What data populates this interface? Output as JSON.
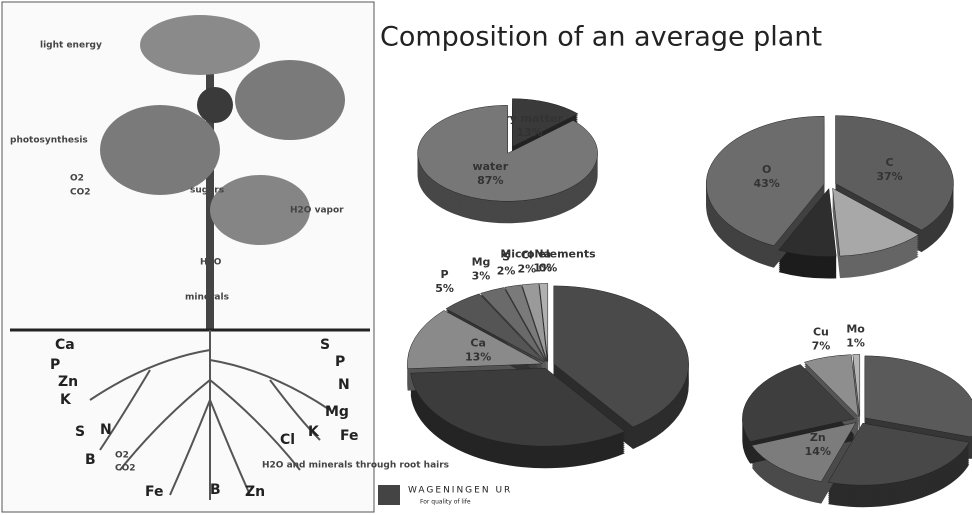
{
  "title": "Composition of an average plant",
  "diagram": {
    "labels": [
      "light energy",
      "photosynthesis",
      "O2",
      "CO2",
      "sugars",
      "H2O vapor",
      "H2O",
      "minerals",
      "Ca",
      "P",
      "Zn",
      "K",
      "S",
      "N",
      "B",
      "Fe",
      "Zn",
      "B",
      "S",
      "P",
      "N",
      "Mg",
      "K",
      "Fe",
      "Cl",
      "O2",
      "CO2",
      "H2O and minerals through root hairs"
    ]
  },
  "logo": {
    "name": "WAGENINGEN UR",
    "tagline": "For quality of life"
  },
  "chart_data": [
    {
      "type": "pie",
      "categories": [
        "dry matter",
        "water"
      ],
      "values": [
        13,
        87
      ],
      "value_labels": [
        "13%",
        "87%"
      ],
      "colors": [
        "#3a3a3a",
        "#777777"
      ]
    },
    {
      "type": "pie",
      "categories": [
        "C",
        null,
        null,
        "O"
      ],
      "values": [
        37,
        12,
        8,
        43
      ],
      "value_labels": [
        "37%",
        null,
        null,
        "43%"
      ],
      "colors": [
        "#5e5e5e",
        "#a8a8a8",
        "#2e2e2e",
        "#6c6c6c"
      ]
    },
    {
      "type": "pie",
      "categories": [
        null,
        null,
        "Ca",
        "P",
        "Mg",
        "S",
        "Cl",
        "Na",
        "Micro elements"
      ],
      "values": [
        40,
        34,
        13,
        5,
        3,
        2,
        2,
        1,
        0
      ],
      "value_labels": [
        null,
        null,
        "13%",
        "5%",
        "3%",
        "2%",
        "2%",
        "1%",
        "0%"
      ],
      "colors": [
        "#4a4a4a",
        "#3c3c3c",
        "#8a8a8a",
        "#555555",
        "#6a6a6a",
        "#7a7a7a",
        "#9a9a9a",
        "#b0b0b0",
        "#cccccc"
      ]
    },
    {
      "type": "pie",
      "categories": [
        null,
        null,
        "Zn",
        null,
        "Cu",
        "Mo"
      ],
      "values": [
        30,
        25,
        14,
        23,
        7,
        1
      ],
      "value_labels": [
        null,
        null,
        "14%",
        null,
        "7%",
        "1%"
      ],
      "colors": [
        "#5a5a5a",
        "#484848",
        "#7c7c7c",
        "#3e3e3e",
        "#8e8e8e",
        "#b5b5b5"
      ]
    }
  ]
}
